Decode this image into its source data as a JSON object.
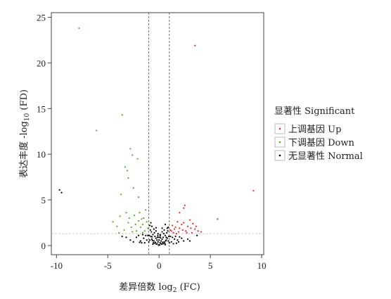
{
  "chart_data": {
    "type": "scatter",
    "title": "",
    "xlabel": "差异倍数 log",
    "xlabel_sub": "2",
    "xlabel_tail": " (FC)",
    "ylabel": "表达丰度 -log",
    "ylabel_sub": "10",
    "ylabel_tail": " (FD)",
    "xlim": [
      -10.5,
      10.2
    ],
    "ylim": [
      -1,
      25.5
    ],
    "xticks": [
      -10,
      -5,
      0,
      5,
      10
    ],
    "yticks": [
      0,
      5,
      10,
      15,
      20,
      25
    ],
    "thresholds": {
      "log2fc": [
        -1,
        1
      ],
      "neg_log10_fd": 1.3
    },
    "legend": {
      "title": "显著性 Significant",
      "placement": "right",
      "entries": [
        {
          "key": "up",
          "label": "上调基因 Up",
          "color": "#e8291c"
        },
        {
          "key": "down",
          "label": "下调基因 Down",
          "color": "#4caf2a"
        },
        {
          "key": "normal",
          "label": "无显著性 Normal",
          "color": "#000000"
        }
      ]
    },
    "series": [
      {
        "name": "上调基因 Up",
        "key": "up",
        "points": [
          [
            3.5,
            21.9
          ],
          [
            9.2,
            6.0
          ],
          [
            2.5,
            4.4
          ],
          [
            2.4,
            4.1
          ],
          [
            2.0,
            3.6
          ],
          [
            5.7,
            2.9
          ],
          [
            3.0,
            2.8
          ],
          [
            1.3,
            2.2
          ],
          [
            1.6,
            2.0
          ],
          [
            2.2,
            2.3
          ],
          [
            2.6,
            1.6
          ],
          [
            3.1,
            1.9
          ],
          [
            3.5,
            1.8
          ],
          [
            3.6,
            2.1
          ],
          [
            1.4,
            1.4
          ],
          [
            1.9,
            1.5
          ],
          [
            2.3,
            1.7
          ],
          [
            2.8,
            2.1
          ],
          [
            3.2,
            1.4
          ],
          [
            1.8,
            2.6
          ],
          [
            1.2,
            1.6
          ],
          [
            1.5,
            1.8
          ],
          [
            2.0,
            1.9
          ],
          [
            2.7,
            1.4
          ],
          [
            3.8,
            1.6
          ],
          [
            1.1,
            1.7
          ],
          [
            2.4,
            2.5
          ],
          [
            1.7,
            1.3
          ],
          [
            3.3,
            2.4
          ],
          [
            4.1,
            1.5
          ]
        ]
      },
      {
        "name": "下调基因 Down",
        "key": "down",
        "points": [
          [
            -7.8,
            23.8
          ],
          [
            -3.6,
            14.3
          ],
          [
            -6.1,
            12.6
          ],
          [
            -2.8,
            10.6
          ],
          [
            -2.6,
            9.9
          ],
          [
            -2.1,
            9.5
          ],
          [
            -3.1,
            8.2
          ],
          [
            -3.3,
            8.6
          ],
          [
            -3.0,
            7.4
          ],
          [
            -3.7,
            5.6
          ],
          [
            -2.5,
            6.3
          ],
          [
            -2.0,
            5.3
          ],
          [
            -4.5,
            2.6
          ],
          [
            -3.8,
            3.2
          ],
          [
            -3.2,
            3.6
          ],
          [
            -2.9,
            3.0
          ],
          [
            -2.4,
            3.3
          ],
          [
            -1.9,
            3.6
          ],
          [
            -1.6,
            2.3
          ],
          [
            -1.5,
            3.0
          ],
          [
            -1.3,
            3.9
          ],
          [
            -4.1,
            2.1
          ],
          [
            -3.4,
            1.7
          ],
          [
            -2.7,
            2.0
          ],
          [
            -2.2,
            1.6
          ],
          [
            -1.8,
            2.0
          ],
          [
            -1.4,
            1.6
          ],
          [
            -1.2,
            2.6
          ],
          [
            -3.9,
            1.4
          ],
          [
            -2.0,
            2.7
          ],
          [
            -1.6,
            1.4
          ],
          [
            -2.6,
            1.5
          ],
          [
            -1.1,
            1.9
          ],
          [
            -3.0,
            2.5
          ],
          [
            -2.3,
            2.3
          ],
          [
            -1.7,
            2.9
          ]
        ]
      },
      {
        "name": "无显著性 Normal",
        "key": "normal",
        "points": [
          [
            -9.7,
            6.1
          ],
          [
            -9.5,
            5.8
          ],
          [
            -0.1,
            0.4
          ],
          [
            0.1,
            0.3
          ],
          [
            0.0,
            0.1
          ],
          [
            -0.2,
            0.6
          ],
          [
            0.2,
            0.5
          ],
          [
            -0.3,
            0.8
          ],
          [
            0.3,
            0.7
          ],
          [
            -0.4,
            1.0
          ],
          [
            0.4,
            0.9
          ],
          [
            -0.5,
            0.5
          ],
          [
            0.5,
            0.4
          ],
          [
            -0.6,
            1.2
          ],
          [
            0.6,
            1.1
          ],
          [
            -0.7,
            0.7
          ],
          [
            0.7,
            0.6
          ],
          [
            -0.8,
            1.0
          ],
          [
            0.8,
            0.8
          ],
          [
            -0.9,
            0.6
          ],
          [
            0.9,
            0.5
          ],
          [
            -1.0,
            0.4
          ],
          [
            1.0,
            0.3
          ],
          [
            -1.2,
            0.6
          ],
          [
            1.2,
            0.4
          ],
          [
            -1.5,
            0.8
          ],
          [
            1.5,
            0.7
          ],
          [
            -1.8,
            0.5
          ],
          [
            1.8,
            0.6
          ],
          [
            -2.2,
            0.9
          ],
          [
            2.2,
            0.8
          ],
          [
            -2.5,
            0.4
          ],
          [
            2.4,
            0.5
          ],
          [
            -0.1,
            1.3
          ],
          [
            0.1,
            1.2
          ],
          [
            -0.3,
            1.6
          ],
          [
            0.3,
            1.5
          ],
          [
            -0.5,
            1.8
          ],
          [
            0.5,
            1.7
          ],
          [
            -0.7,
            2.1
          ],
          [
            0.6,
            2.3
          ],
          [
            -0.8,
            2.5
          ],
          [
            0.8,
            1.9
          ],
          [
            -0.9,
            2.2
          ],
          [
            0.9,
            2.0
          ],
          [
            -0.2,
            0.2
          ],
          [
            0.2,
            0.2
          ],
          [
            -0.35,
            0.35
          ],
          [
            0.35,
            0.35
          ],
          [
            -0.15,
            0.9
          ],
          [
            0.15,
            0.85
          ],
          [
            -0.45,
            1.4
          ],
          [
            0.45,
            1.3
          ],
          [
            -0.55,
            0.3
          ],
          [
            0.55,
            0.25
          ],
          [
            -0.65,
            0.55
          ],
          [
            0.65,
            0.5
          ],
          [
            -0.75,
            1.5
          ],
          [
            0.75,
            1.4
          ],
          [
            -0.85,
            1.7
          ],
          [
            0.85,
            1.6
          ],
          [
            -0.95,
            1.1
          ],
          [
            0.95,
            1.0
          ],
          [
            -1.1,
            1.1
          ],
          [
            1.1,
            1.0
          ],
          [
            -1.3,
            1.1
          ],
          [
            1.3,
            0.9
          ],
          [
            -1.6,
            1.2
          ],
          [
            1.6,
            1.0
          ],
          [
            -2.0,
            1.1
          ],
          [
            2.0,
            0.95
          ],
          [
            -2.8,
            0.6
          ],
          [
            2.8,
            0.7
          ],
          [
            -3.2,
            0.9
          ],
          [
            3.0,
            0.5
          ],
          [
            -1.4,
            0.3
          ],
          [
            1.4,
            0.2
          ],
          [
            -1.7,
            0.3
          ],
          [
            1.7,
            0.25
          ],
          [
            -0.05,
            0.05
          ],
          [
            0.05,
            0.05
          ],
          [
            -0.25,
            0.15
          ],
          [
            0.25,
            0.15
          ],
          [
            -0.4,
            0.25
          ],
          [
            0.4,
            0.2
          ],
          [
            -0.6,
            0.15
          ],
          [
            0.6,
            0.1
          ],
          [
            3.7,
            1.1
          ],
          [
            -3.6,
            1.0
          ],
          [
            0.0,
            0.6
          ],
          [
            0.0,
            0.9
          ],
          [
            -0.12,
            1.1
          ],
          [
            0.12,
            1.05
          ],
          [
            0.3,
            1.9
          ],
          [
            -0.3,
            1.95
          ],
          [
            0.7,
            0.9
          ],
          [
            -0.7,
            0.95
          ],
          [
            1.9,
            0.4
          ],
          [
            -1.9,
            0.35
          ]
        ]
      }
    ]
  }
}
